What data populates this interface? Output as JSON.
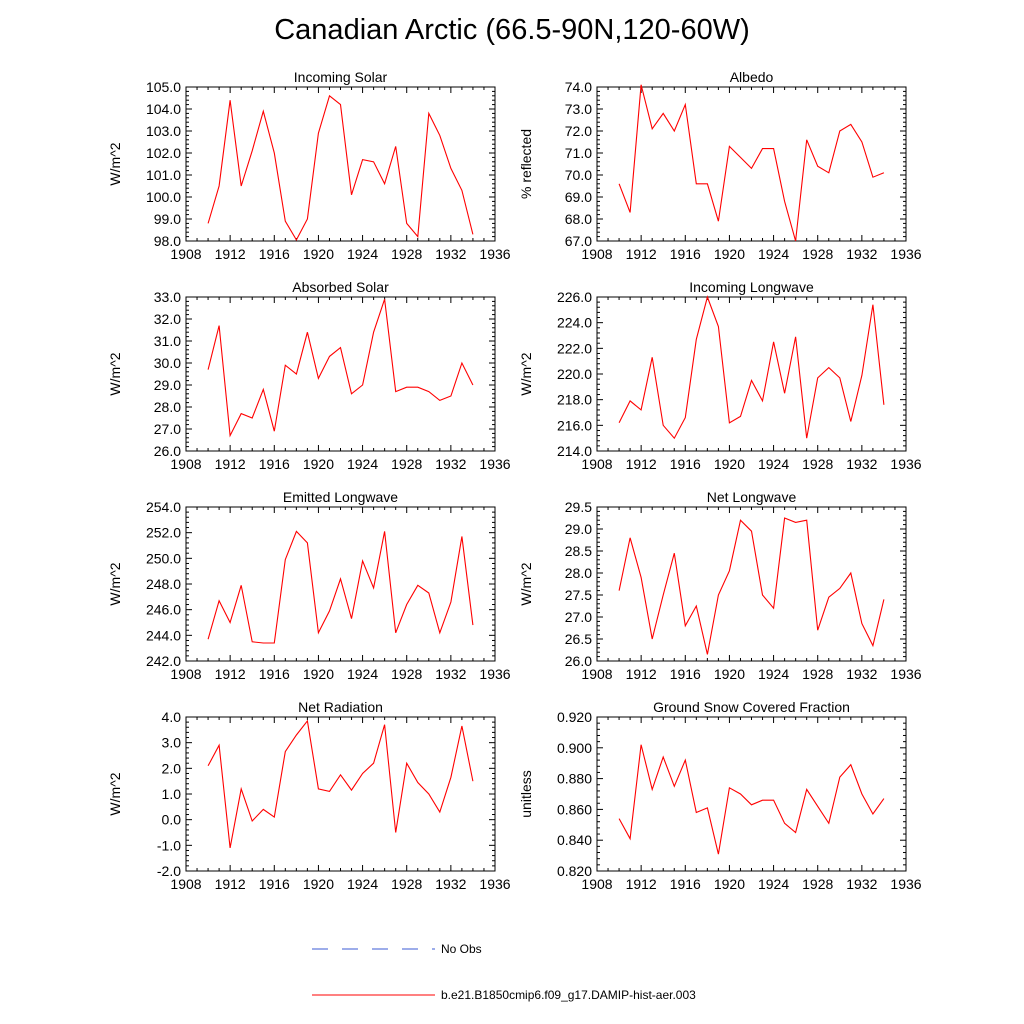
{
  "title": "Canadian Arctic (66.5-90N,120-60W)",
  "colors": {
    "model": "#ff0000",
    "obs": "#3b5bd6"
  },
  "legend": [
    {
      "label": "No Obs",
      "style": "dashed",
      "color": "#3b5bd6"
    },
    {
      "label": "b.e21.B1850cmip6.f09_g17.DAMIP-hist-aer.003",
      "style": "solid",
      "color": "#ff0000"
    }
  ],
  "chart_data": [
    {
      "type": "line",
      "title": "Incoming Solar",
      "ylabel": "W/m^2",
      "xlabel": "",
      "xlim": [
        1908,
        1936
      ],
      "ylim": [
        98.0,
        105.0
      ],
      "xticks": [
        "1908",
        "1912",
        "1916",
        "1920",
        "1924",
        "1928",
        "1932",
        "1936"
      ],
      "yticks": [
        "98.0",
        "99.0",
        "100.0",
        "101.0",
        "102.0",
        "103.0",
        "104.0",
        "105.0"
      ],
      "x": [
        1910,
        1911,
        1912,
        1913,
        1914,
        1915,
        1916,
        1917,
        1918,
        1919,
        1920,
        1921,
        1922,
        1923,
        1924,
        1925,
        1926,
        1927,
        1928,
        1929,
        1930,
        1931,
        1932,
        1933,
        1934
      ],
      "series": [
        {
          "name": "b.e21.B1850cmip6.f09_g17.DAMIP-hist-aer.003",
          "values": [
            98.8,
            100.5,
            104.4,
            100.5,
            102.1,
            103.9,
            102.0,
            98.9,
            98.05,
            99.0,
            102.9,
            104.6,
            104.2,
            100.1,
            101.7,
            101.6,
            100.6,
            102.3,
            98.8,
            98.2,
            103.8,
            102.8,
            101.3,
            100.3,
            98.3
          ]
        }
      ]
    },
    {
      "type": "line",
      "title": "Albedo",
      "ylabel": "% reflected",
      "xlabel": "",
      "xlim": [
        1908,
        1936
      ],
      "ylim": [
        67.0,
        74.0
      ],
      "xticks": [
        "1908",
        "1912",
        "1916",
        "1920",
        "1924",
        "1928",
        "1932",
        "1936"
      ],
      "yticks": [
        "67.0",
        "68.0",
        "69.0",
        "70.0",
        "71.0",
        "72.0",
        "73.0",
        "74.0"
      ],
      "x": [
        1910,
        1911,
        1912,
        1913,
        1914,
        1915,
        1916,
        1917,
        1918,
        1919,
        1920,
        1921,
        1922,
        1923,
        1924,
        1925,
        1926,
        1927,
        1928,
        1929,
        1930,
        1931,
        1932,
        1933,
        1934
      ],
      "series": [
        {
          "name": "b.e21.B1850cmip6.f09_g17.DAMIP-hist-aer.003",
          "values": [
            69.6,
            68.3,
            74.1,
            72.1,
            72.8,
            72.0,
            73.2,
            69.6,
            69.6,
            67.9,
            71.3,
            70.8,
            70.3,
            71.2,
            71.2,
            68.8,
            67.0,
            71.6,
            70.4,
            70.1,
            72.0,
            72.3,
            71.5,
            69.9,
            70.1
          ]
        }
      ]
    },
    {
      "type": "line",
      "title": "Absorbed Solar",
      "ylabel": "W/m^2",
      "xlabel": "",
      "xlim": [
        1908,
        1936
      ],
      "ylim": [
        26.0,
        33.0
      ],
      "xticks": [
        "1908",
        "1912",
        "1916",
        "1920",
        "1924",
        "1928",
        "1932",
        "1936"
      ],
      "yticks": [
        "26.0",
        "27.0",
        "28.0",
        "29.0",
        "30.0",
        "31.0",
        "32.0",
        "33.0"
      ],
      "x": [
        1910,
        1911,
        1912,
        1913,
        1914,
        1915,
        1916,
        1917,
        1918,
        1919,
        1920,
        1921,
        1922,
        1923,
        1924,
        1925,
        1926,
        1927,
        1928,
        1929,
        1930,
        1931,
        1932,
        1933,
        1934
      ],
      "series": [
        {
          "name": "b.e21.B1850cmip6.f09_g17.DAMIP-hist-aer.003",
          "values": [
            29.7,
            31.7,
            26.7,
            27.7,
            27.5,
            28.8,
            26.9,
            29.9,
            29.5,
            31.4,
            29.3,
            30.3,
            30.7,
            28.6,
            29.0,
            31.4,
            32.9,
            28.7,
            28.9,
            28.9,
            28.7,
            28.3,
            28.5,
            30.0,
            29.0
          ]
        }
      ]
    },
    {
      "type": "line",
      "title": "Incoming Longwave",
      "ylabel": "W/m^2",
      "xlabel": "",
      "xlim": [
        1908,
        1936
      ],
      "ylim": [
        214.0,
        226.0
      ],
      "xticks": [
        "1908",
        "1912",
        "1916",
        "1920",
        "1924",
        "1928",
        "1932",
        "1936"
      ],
      "yticks": [
        "214.0",
        "216.0",
        "218.0",
        "220.0",
        "222.0",
        "224.0",
        "226.0"
      ],
      "x": [
        1910,
        1911,
        1912,
        1913,
        1914,
        1915,
        1916,
        1917,
        1918,
        1919,
        1920,
        1921,
        1922,
        1923,
        1924,
        1925,
        1926,
        1927,
        1928,
        1929,
        1930,
        1931,
        1932,
        1933,
        1934
      ],
      "series": [
        {
          "name": "b.e21.B1850cmip6.f09_g17.DAMIP-hist-aer.003",
          "values": [
            216.2,
            217.9,
            217.2,
            221.3,
            216.0,
            215.0,
            216.6,
            222.7,
            226.0,
            223.7,
            216.2,
            216.7,
            219.5,
            217.9,
            222.5,
            218.5,
            222.9,
            215.0,
            219.7,
            220.5,
            219.7,
            216.3,
            219.9,
            225.4,
            217.6
          ]
        }
      ]
    },
    {
      "type": "line",
      "title": "Emitted Longwave",
      "ylabel": "W/m^2",
      "xlabel": "",
      "xlim": [
        1908,
        1936
      ],
      "ylim": [
        242.0,
        254.0
      ],
      "xticks": [
        "1908",
        "1912",
        "1916",
        "1920",
        "1924",
        "1928",
        "1932",
        "1936"
      ],
      "yticks": [
        "242.0",
        "244.0",
        "246.0",
        "248.0",
        "250.0",
        "252.0",
        "254.0"
      ],
      "x": [
        1910,
        1911,
        1912,
        1913,
        1914,
        1915,
        1916,
        1917,
        1918,
        1919,
        1920,
        1921,
        1922,
        1923,
        1924,
        1925,
        1926,
        1927,
        1928,
        1929,
        1930,
        1931,
        1932,
        1933,
        1934
      ],
      "series": [
        {
          "name": "b.e21.B1850cmip6.f09_g17.DAMIP-hist-aer.003",
          "values": [
            243.7,
            246.7,
            245.0,
            247.9,
            243.5,
            243.4,
            243.4,
            249.9,
            252.1,
            251.2,
            244.2,
            245.9,
            248.4,
            245.3,
            249.8,
            247.7,
            252.1,
            244.2,
            246.4,
            247.9,
            247.3,
            244.2,
            246.6,
            251.7,
            244.8
          ]
        }
      ]
    },
    {
      "type": "line",
      "title": "Net Longwave",
      "ylabel": "W/m^2",
      "xlabel": "",
      "xlim": [
        1908,
        1936
      ],
      "ylim": [
        26.0,
        29.5
      ],
      "xticks": [
        "1908",
        "1912",
        "1916",
        "1920",
        "1924",
        "1928",
        "1932",
        "1936"
      ],
      "yticks": [
        "26.0",
        "26.5",
        "27.0",
        "27.5",
        "28.0",
        "28.5",
        "29.0",
        "29.5"
      ],
      "x": [
        1910,
        1911,
        1912,
        1913,
        1914,
        1915,
        1916,
        1917,
        1918,
        1919,
        1920,
        1921,
        1922,
        1923,
        1924,
        1925,
        1926,
        1927,
        1928,
        1929,
        1930,
        1931,
        1932,
        1933,
        1934
      ],
      "series": [
        {
          "name": "b.e21.B1850cmip6.f09_g17.DAMIP-hist-aer.003",
          "values": [
            27.6,
            28.8,
            27.9,
            26.5,
            27.5,
            28.45,
            26.8,
            27.25,
            26.15,
            27.5,
            28.05,
            29.2,
            28.95,
            27.5,
            27.2,
            29.25,
            29.15,
            29.2,
            26.7,
            27.45,
            27.65,
            28.0,
            26.85,
            26.35,
            27.4
          ]
        }
      ]
    },
    {
      "type": "line",
      "title": "Net Radiation",
      "ylabel": "W/m^2",
      "xlabel": "",
      "xlim": [
        1908,
        1936
      ],
      "ylim": [
        -2.0,
        4.0
      ],
      "xticks": [
        "1908",
        "1912",
        "1916",
        "1920",
        "1924",
        "1928",
        "1932",
        "1936"
      ],
      "yticks": [
        "-2.0",
        "-1.0",
        "0.0",
        "1.0",
        "2.0",
        "3.0",
        "4.0"
      ],
      "x": [
        1910,
        1911,
        1912,
        1913,
        1914,
        1915,
        1916,
        1917,
        1918,
        1919,
        1920,
        1921,
        1922,
        1923,
        1924,
        1925,
        1926,
        1927,
        1928,
        1929,
        1930,
        1931,
        1932,
        1933,
        1934
      ],
      "series": [
        {
          "name": "b.e21.B1850cmip6.f09_g17.DAMIP-hist-aer.003",
          "values": [
            2.1,
            2.9,
            -1.1,
            1.2,
            -0.05,
            0.4,
            0.1,
            2.65,
            3.3,
            3.85,
            1.2,
            1.1,
            1.75,
            1.15,
            1.8,
            2.2,
            3.7,
            -0.5,
            2.2,
            1.45,
            1.0,
            0.3,
            1.65,
            3.65,
            1.5
          ]
        }
      ]
    },
    {
      "type": "line",
      "title": "Ground Snow Covered Fraction",
      "ylabel": "unitless",
      "xlabel": "",
      "xlim": [
        1908,
        1936
      ],
      "ylim": [
        0.82,
        0.92
      ],
      "xticks": [
        "1908",
        "1912",
        "1916",
        "1920",
        "1924",
        "1928",
        "1932",
        "1936"
      ],
      "yticks": [
        "0.820",
        "0.840",
        "0.860",
        "0.880",
        "0.900",
        "0.920"
      ],
      "x": [
        1910,
        1911,
        1912,
        1913,
        1914,
        1915,
        1916,
        1917,
        1918,
        1919,
        1920,
        1921,
        1922,
        1923,
        1924,
        1925,
        1926,
        1927,
        1928,
        1929,
        1930,
        1931,
        1932,
        1933,
        1934
      ],
      "series": [
        {
          "name": "b.e21.B1850cmip6.f09_g17.DAMIP-hist-aer.003",
          "values": [
            0.854,
            0.841,
            0.902,
            0.873,
            0.894,
            0.875,
            0.892,
            0.858,
            0.861,
            0.831,
            0.874,
            0.87,
            0.863,
            0.866,
            0.866,
            0.851,
            0.845,
            0.873,
            0.862,
            0.851,
            0.881,
            0.889,
            0.87,
            0.857,
            0.867
          ]
        }
      ]
    }
  ]
}
